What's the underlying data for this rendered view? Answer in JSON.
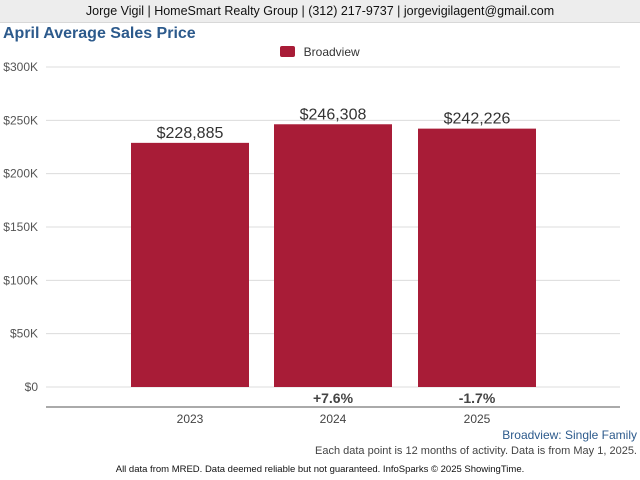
{
  "header": {
    "text": "Jorge Vigil | HomeSmart Realty Group | (312) 217-9737 | jorgevigilagent@gmail.com"
  },
  "colors": {
    "series": "#a81c37",
    "title": "#2c5a8c",
    "header_bg": "#ededed"
  },
  "subtitle": "Broadview: Single Family",
  "note": "Each data point is 12 months of activity. Data is from May 1, 2025.",
  "footer": "All data from MRED. Data deemed reliable but not guaranteed. InfoSparks © 2025 ShowingTime.",
  "chart_data": {
    "type": "bar",
    "title": "April Average Sales Price",
    "categories": [
      "2023",
      "2024",
      "2025"
    ],
    "series": [
      {
        "name": "Broadview",
        "values": [
          228885,
          246308,
          242226
        ],
        "color": "#a81c37"
      }
    ],
    "value_labels": [
      "$228,885",
      "$246,308",
      "$242,226"
    ],
    "change_labels": [
      "",
      "+7.6%",
      "-1.7%"
    ],
    "ylim": [
      0,
      300000
    ],
    "yticks": [
      0,
      50000,
      100000,
      150000,
      200000,
      250000,
      300000
    ],
    "ytick_labels": [
      "$0",
      "$50K",
      "$100K",
      "$150K",
      "$200K",
      "$250K",
      "$300K"
    ],
    "xlabel": "",
    "ylabel": "",
    "grid": true,
    "legend": "top-center"
  }
}
